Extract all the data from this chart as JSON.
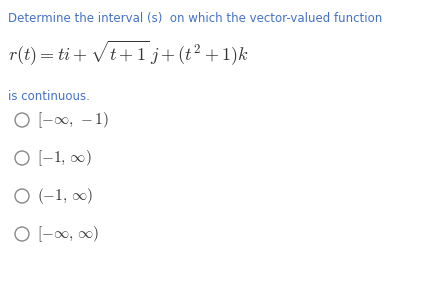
{
  "title_text": "Determine the interval (s)  on which the vector-valued function",
  "title_color": "#4472C4",
  "continuous_text": "is continuous.",
  "continuous_color": "#4472C4",
  "option_texts": [
    "[− ∞, − 1)",
    "[− 1, ∞)",
    "(− 1, ∞)",
    "[− ∞, ∞)"
  ],
  "bg_color": "#ffffff",
  "text_color": "#333333",
  "option_color": "#333333",
  "figsize": [
    4.31,
    3.02
  ],
  "dpi": 100,
  "title_fontsize": 8.5,
  "func_fontsize": 13,
  "option_fontsize": 11,
  "continuous_fontsize": 8.5
}
